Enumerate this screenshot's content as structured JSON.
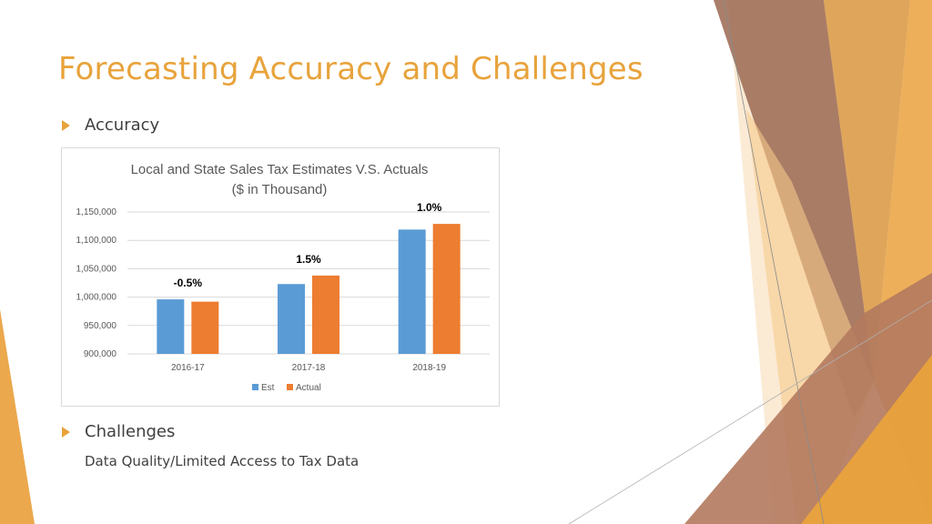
{
  "slide": {
    "title": "Forecasting Accuracy and Challenges",
    "bullet1": "Accuracy",
    "bullet2": "Challenges",
    "bullet2_detail": "Data Quality/Limited Access to Tax Data",
    "accent_color": "#e8a33c"
  },
  "chart_data": {
    "type": "bar",
    "title_line1": "Local and State Sales Tax Estimates V.S. Actuals",
    "title_line2": "($ in Thousand)",
    "categories": [
      "2016-17",
      "2017-18",
      "2018-19"
    ],
    "series": [
      {
        "name": "Est",
        "color": "#5b9bd5",
        "values": [
          996000,
          1023000,
          1119000
        ]
      },
      {
        "name": "Actual",
        "color": "#ed7d31",
        "values": [
          992000,
          1038000,
          1129000
        ]
      }
    ],
    "annotations": [
      "-0.5%",
      "1.5%",
      "1.0%"
    ],
    "yticks": [
      "900,000",
      "950,000",
      "1,000,000",
      "1,050,000",
      "1,100,000",
      "1,150,000"
    ],
    "ylim": [
      900000,
      1150000
    ],
    "grid": true,
    "legend": "bottom"
  }
}
